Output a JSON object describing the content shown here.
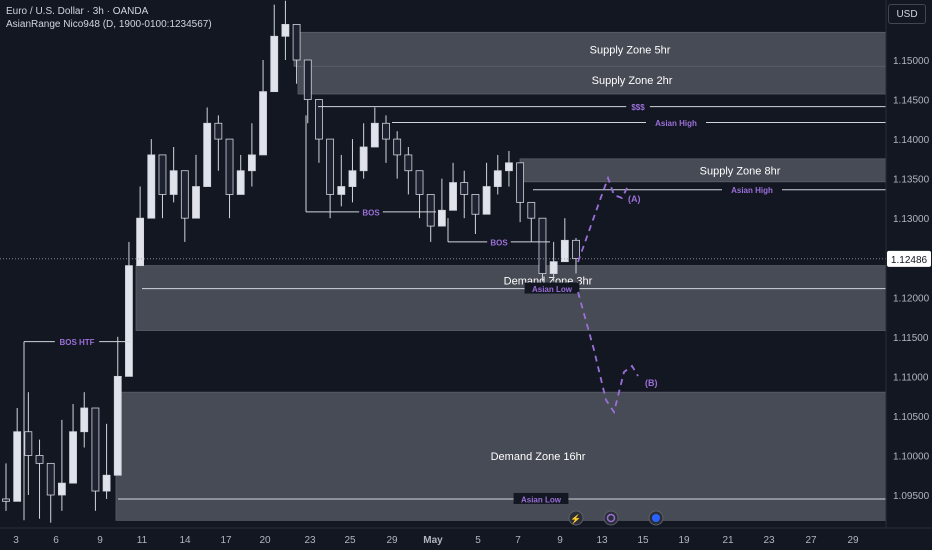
{
  "header": {
    "title": "Euro / U.S. Dollar · 3h · OANDA",
    "indicator": "AsianRange Nico948 (D, 1900-0100:1234567)"
  },
  "currency_button": "USD",
  "price_axis": {
    "ticks": [
      "1.15000",
      "1.14500",
      "1.14000",
      "1.13500",
      "1.13000",
      "1.12000",
      "1.11500",
      "1.11000",
      "1.10500",
      "1.10000",
      "1.09500"
    ],
    "tick_values": [
      1.15,
      1.145,
      1.14,
      1.135,
      1.13,
      1.12,
      1.115,
      1.11,
      1.105,
      1.1,
      1.095
    ],
    "current_price": "1.12486"
  },
  "time_axis": {
    "labels": [
      "3",
      "6",
      "9",
      "11",
      "14",
      "17",
      "20",
      "23",
      "25",
      "29",
      "May",
      "5",
      "7",
      "9",
      "13",
      "15",
      "19",
      "21",
      "23",
      "27",
      "29"
    ]
  },
  "zones": [
    {
      "label": "Supply Zone 5hr",
      "top": 1.1535,
      "bottom": 1.1492,
      "type": "supply"
    },
    {
      "label": "Supply Zone 2hr",
      "top": 1.1492,
      "bottom": 1.1457,
      "type": "supply"
    },
    {
      "label": "Supply Zone 8hr",
      "top": 1.1375,
      "bottom": 1.1346,
      "type": "supply"
    },
    {
      "label": "Demand Zone 3hr",
      "top": 1.124,
      "bottom": 1.1158,
      "type": "demand"
    },
    {
      "label": "Demand Zone 16hr",
      "top": 1.108,
      "bottom": 1.0918,
      "type": "demand"
    }
  ],
  "levels": [
    {
      "label": "$$$",
      "price": 1.1441
    },
    {
      "label": "Asian High",
      "price": 1.1421
    },
    {
      "label": "Asian High",
      "price": 1.1336
    },
    {
      "label": "BOS",
      "price": 1.1308
    },
    {
      "label": "BOS",
      "price": 1.127
    },
    {
      "label": "BOS HTF",
      "price": 1.1144
    },
    {
      "label": "Asian Low",
      "price": 1.1211
    },
    {
      "label": "Asian Low",
      "price": 1.0945
    }
  ],
  "projection_labels": [
    "(A)",
    "(B)"
  ],
  "chart_data": {
    "type": "candlestick",
    "title": "Euro / U.S. Dollar · 3h · OANDA",
    "ylim": [
      1.0915,
      1.1575
    ],
    "current_price": 1.12486,
    "path_points": [
      [
        1.0942,
        1.099,
        1.093
      ],
      [
        1.103,
        1.106,
        1.096
      ],
      [
        1.1,
        1.108,
        1.095
      ],
      [
        1.099,
        1.102,
        1.092
      ],
      [
        1.095,
        1.098,
        1.0915
      ],
      [
        1.0965,
        1.1045,
        1.093
      ],
      [
        1.103,
        1.1065,
        1.0985
      ],
      [
        1.106,
        1.108,
        1.101
      ],
      [
        1.0955,
        1.1,
        1.093
      ],
      [
        1.0975,
        1.104,
        1.0945
      ],
      [
        1.11,
        1.115,
        1.105
      ],
      [
        1.124,
        1.127,
        1.118
      ],
      [
        1.13,
        1.134,
        1.125
      ],
      [
        1.138,
        1.14,
        1.133
      ],
      [
        1.133,
        1.137,
        1.13
      ],
      [
        1.136,
        1.139,
        1.132
      ],
      [
        1.13,
        1.133,
        1.127
      ],
      [
        1.134,
        1.138,
        1.131
      ],
      [
        1.142,
        1.144,
        1.136
      ],
      [
        1.14,
        1.143,
        1.136
      ],
      [
        1.133,
        1.137,
        1.13
      ],
      [
        1.136,
        1.138,
        1.133
      ],
      [
        1.138,
        1.142,
        1.134
      ],
      [
        1.146,
        1.15,
        1.142
      ],
      [
        1.153,
        1.157,
        1.149
      ],
      [
        1.1545,
        1.1575,
        1.15
      ],
      [
        1.15,
        1.154,
        1.147
      ],
      [
        1.145,
        1.148,
        1.142
      ],
      [
        1.14,
        1.143,
        1.137
      ],
      [
        1.133,
        1.136,
        1.13
      ],
      [
        1.134,
        1.138,
        1.1315
      ],
      [
        1.136,
        1.14,
        1.132
      ],
      [
        1.139,
        1.142,
        1.135
      ],
      [
        1.142,
        1.144,
        1.139
      ],
      [
        1.14,
        1.143,
        1.137
      ],
      [
        1.138,
        1.141,
        1.135
      ],
      [
        1.136,
        1.139,
        1.133
      ],
      [
        1.133,
        1.135,
        1.13
      ],
      [
        1.129,
        1.132,
        1.127
      ],
      [
        1.131,
        1.135,
        1.129
      ],
      [
        1.1345,
        1.137,
        1.132
      ],
      [
        1.133,
        1.136,
        1.13
      ],
      [
        1.1305,
        1.133,
        1.128
      ],
      [
        1.134,
        1.137,
        1.131
      ],
      [
        1.136,
        1.138,
        1.133
      ],
      [
        1.137,
        1.1385,
        1.134
      ],
      [
        1.132,
        1.135,
        1.1295
      ],
      [
        1.13,
        1.132,
        1.127
      ],
      [
        1.123,
        1.126,
        1.122
      ],
      [
        1.1245,
        1.127,
        1.122
      ],
      [
        1.1272,
        1.13,
        1.125
      ],
      [
        1.1249,
        1.1275,
        1.123
      ]
    ]
  }
}
